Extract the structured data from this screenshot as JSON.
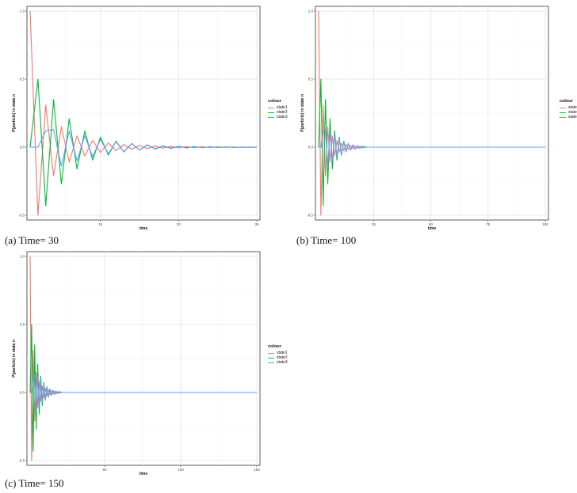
{
  "colors": {
    "state1": "#F8766D",
    "state2": "#00BA38",
    "state3": "#619CFF"
  },
  "chart_data": [
    {
      "type": "line",
      "caption": "(a) Time= 30",
      "xlabel": "time",
      "ylabel": "P(particle) in state n",
      "legend_title": "colour",
      "legend_position": "right",
      "grid": true,
      "xlim": [
        1,
        30
      ],
      "ylim": [
        -0.5,
        1.0
      ],
      "xticks": [
        10,
        20,
        30
      ],
      "yticks": [
        -0.5,
        0.0,
        0.5,
        1.0
      ],
      "xtick_labels": [
        "10",
        "20",
        "30"
      ],
      "ytick_labels": [
        "-0.5",
        "0.0",
        "0.5",
        "1.0"
      ],
      "x": [
        1,
        2,
        3,
        4,
        5,
        6,
        7,
        8,
        9,
        10,
        11,
        12,
        13,
        14,
        15,
        16,
        17,
        18,
        19,
        20,
        21,
        22,
        23,
        24,
        25,
        26,
        27,
        28,
        29,
        30
      ],
      "series": [
        {
          "name": "state1",
          "values": [
            1.0,
            -0.5,
            0.31,
            -0.21,
            0.15,
            -0.11,
            0.083,
            -0.064,
            0.05,
            -0.039,
            0.031,
            -0.025,
            0.02,
            -0.016,
            0.013,
            -0.011,
            0.009,
            -0.007,
            0.006,
            -0.005,
            0.004,
            -0.003,
            0.0025,
            -0.002,
            0.0016,
            -0.0013,
            0.001,
            -0.0008,
            0.0006,
            -0.0005
          ]
        },
        {
          "name": "state2",
          "values": [
            0.0,
            0.5,
            -0.43,
            0.35,
            -0.27,
            0.21,
            -0.16,
            0.12,
            -0.095,
            0.074,
            -0.058,
            0.045,
            -0.035,
            0.027,
            -0.021,
            0.016,
            -0.012,
            0.009,
            -0.007,
            0.0055,
            -0.004,
            0.003,
            -0.0023,
            0.0018,
            -0.0013,
            0.001,
            -0.0008,
            0.0006,
            -0.0005,
            0.0004
          ]
        },
        {
          "name": "state3",
          "values": [
            0.0,
            0.0,
            0.12,
            0.13,
            -0.14,
            0.12,
            -0.1,
            0.085,
            -0.07,
            0.058,
            -0.048,
            0.04,
            -0.033,
            0.027,
            -0.022,
            0.018,
            -0.015,
            0.012,
            -0.01,
            0.008,
            -0.0065,
            0.005,
            -0.004,
            0.0032,
            -0.0025,
            0.002,
            -0.0016,
            0.0012,
            -0.001,
            0.0008
          ]
        }
      ]
    },
    {
      "type": "line",
      "caption": "(b) Time= 100",
      "xlabel": "time",
      "ylabel": "P(particle) in state n",
      "legend_title": "colour",
      "legend_position": "right",
      "grid": true,
      "xlim": [
        1,
        100
      ],
      "ylim": [
        -0.5,
        1.0
      ],
      "xticks": [
        25,
        50,
        75,
        100
      ],
      "yticks": [
        -0.5,
        0.0,
        0.5,
        1.0
      ],
      "xtick_labels": [
        "25",
        "50",
        "75",
        "100"
      ],
      "ytick_labels": [
        "-0.5",
        "0.0",
        "0.5",
        "1.0"
      ],
      "x": [
        1,
        2,
        3,
        4,
        5,
        6,
        7,
        8,
        9,
        10,
        11,
        12,
        13,
        14,
        15,
        16,
        17,
        18,
        19,
        20,
        22,
        25,
        30,
        40,
        50,
        60,
        70,
        80,
        90,
        100
      ],
      "series": [
        {
          "name": "state1",
          "values": [
            1.0,
            -0.5,
            0.31,
            -0.21,
            0.15,
            -0.11,
            0.083,
            -0.064,
            0.05,
            -0.039,
            0.031,
            -0.025,
            0.02,
            -0.016,
            0.013,
            -0.011,
            0.009,
            -0.007,
            0.006,
            -0.005,
            0.0,
            0.0,
            0.0,
            0.0,
            0.0,
            0.0,
            0.0,
            0.0,
            0.0,
            0.0
          ]
        },
        {
          "name": "state2",
          "values": [
            0.0,
            0.5,
            -0.43,
            0.35,
            -0.27,
            0.21,
            -0.16,
            0.12,
            -0.095,
            0.074,
            -0.058,
            0.045,
            -0.035,
            0.027,
            -0.021,
            0.016,
            -0.012,
            0.009,
            -0.007,
            0.0055,
            0.0,
            0.0,
            0.0,
            0.0,
            0.0,
            0.0,
            0.0,
            0.0,
            0.0,
            0.0
          ]
        },
        {
          "name": "state3",
          "values": [
            0.0,
            0.0,
            0.12,
            0.13,
            -0.14,
            0.12,
            -0.1,
            0.085,
            -0.07,
            0.058,
            -0.048,
            0.04,
            -0.033,
            0.027,
            -0.022,
            0.018,
            -0.015,
            0.012,
            -0.01,
            0.008,
            0.0,
            0.0,
            0.0,
            0.0,
            0.0,
            0.0,
            0.0,
            0.0,
            0.0,
            0.0
          ]
        }
      ]
    },
    {
      "type": "line",
      "caption": "(c) Time= 150",
      "xlabel": "time",
      "ylabel": "P(particle) in state n",
      "legend_title": "colour",
      "legend_position": "right",
      "grid": true,
      "xlim": [
        1,
        150
      ],
      "ylim": [
        -0.5,
        1.0
      ],
      "xticks": [
        50,
        100,
        150
      ],
      "yticks": [
        -0.5,
        0.0,
        0.5,
        1.0
      ],
      "xtick_labels": [
        "50",
        "100",
        "150"
      ],
      "ytick_labels": [
        "-0.5",
        "0.0",
        "0.5",
        "1.0"
      ],
      "x": [
        1,
        2,
        3,
        4,
        5,
        6,
        7,
        8,
        9,
        10,
        11,
        12,
        13,
        14,
        15,
        16,
        17,
        18,
        19,
        20,
        22,
        25,
        30,
        40,
        60,
        80,
        100,
        120,
        140,
        150
      ],
      "series": [
        {
          "name": "state1",
          "values": [
            1.0,
            -0.5,
            0.31,
            -0.21,
            0.15,
            -0.11,
            0.083,
            -0.064,
            0.05,
            -0.039,
            0.031,
            -0.025,
            0.02,
            -0.016,
            0.013,
            -0.011,
            0.009,
            -0.007,
            0.006,
            -0.005,
            0.0,
            0.0,
            0.0,
            0.0,
            0.0,
            0.0,
            0.0,
            0.0,
            0.0,
            0.0
          ]
        },
        {
          "name": "state2",
          "values": [
            0.0,
            0.5,
            -0.43,
            0.35,
            -0.27,
            0.21,
            -0.16,
            0.12,
            -0.095,
            0.074,
            -0.058,
            0.045,
            -0.035,
            0.027,
            -0.021,
            0.016,
            -0.012,
            0.009,
            -0.007,
            0.0055,
            0.0,
            0.0,
            0.0,
            0.0,
            0.0,
            0.0,
            0.0,
            0.0,
            0.0,
            0.0
          ]
        },
        {
          "name": "state3",
          "values": [
            0.0,
            0.0,
            0.12,
            0.13,
            -0.14,
            0.12,
            -0.1,
            0.085,
            -0.07,
            0.058,
            -0.048,
            0.04,
            -0.033,
            0.027,
            -0.022,
            0.018,
            -0.015,
            0.012,
            -0.01,
            0.008,
            0.0,
            0.0,
            0.0,
            0.0,
            0.0,
            0.0,
            0.0,
            0.0,
            0.0,
            0.0
          ]
        }
      ]
    }
  ]
}
